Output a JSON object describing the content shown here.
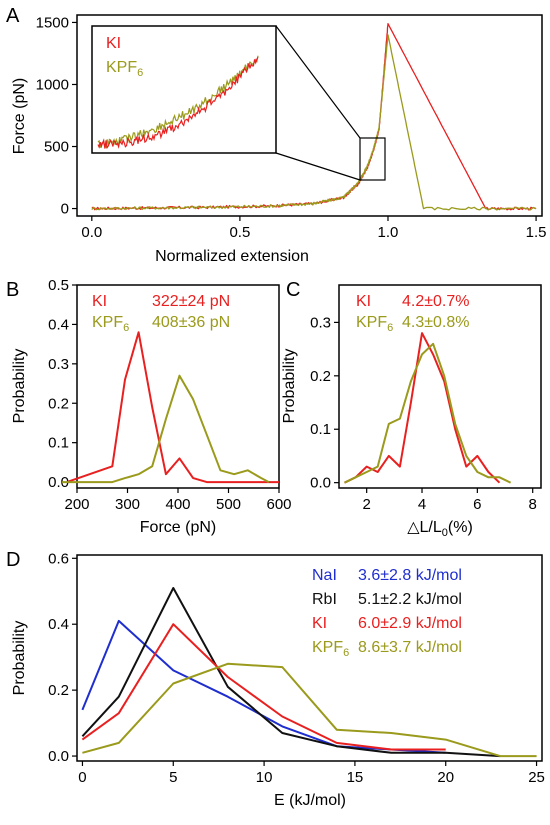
{
  "colors": {
    "ki": "#e82020",
    "kpf6": "#9a9a1c",
    "nai": "#1f2ecf",
    "rbi": "#111111"
  },
  "chart_data": [
    {
      "panel": "A",
      "type": "line",
      "xlabel": "Normalized extension",
      "ylabel": "Force (pN)",
      "xlim": [
        -0.05,
        1.52
      ],
      "ylim": [
        -60,
        1560
      ],
      "xticks": [
        "0.0",
        "0.5",
        "1.0",
        "1.5"
      ],
      "yticks": [
        "0",
        "500",
        "1000",
        "1500"
      ],
      "xtick_values": [
        0,
        0.5,
        1.0,
        1.5
      ],
      "ytick_values": [
        0,
        500,
        1000,
        1500
      ],
      "legend": [
        "KI",
        "KPF6"
      ],
      "series": [
        {
          "name": "KI",
          "x": [
            0,
            0.2,
            0.4,
            0.6,
            0.75,
            0.85,
            0.9,
            0.93,
            0.95,
            0.97,
            1.0,
            1.33,
            1.5
          ],
          "y": [
            0,
            5,
            10,
            20,
            40,
            90,
            200,
            330,
            460,
            640,
            1490,
            0,
            0
          ]
        },
        {
          "name": "KPF6",
          "x": [
            0,
            0.2,
            0.4,
            0.6,
            0.75,
            0.85,
            0.9,
            0.93,
            0.95,
            0.97,
            1.0,
            1.12,
            1.5
          ],
          "y": [
            0,
            5,
            10,
            20,
            40,
            90,
            210,
            340,
            470,
            650,
            1400,
            0,
            0
          ]
        }
      ],
      "inset": "zoom of region x 0.91–0.99, force 200–600 pN"
    },
    {
      "panel": "B",
      "type": "line",
      "xlabel": "Force (pN)",
      "ylabel": "Probability",
      "xlim": [
        200,
        600
      ],
      "ylim": [
        -0.015,
        0.5
      ],
      "xticks": [
        "200",
        "300",
        "400",
        "500",
        "600"
      ],
      "yticks": [
        "0.0",
        "0.1",
        "0.2",
        "0.3",
        "0.4",
        "0.5"
      ],
      "xtick_values": [
        200,
        300,
        400,
        500,
        600
      ],
      "ytick_values": [
        0,
        0.1,
        0.2,
        0.3,
        0.4,
        0.5
      ],
      "legend": [
        {
          "name": "KI",
          "stat": "322±24 pN"
        },
        {
          "name": "KPF6",
          "stat": "408±36 pN"
        }
      ],
      "series": [
        {
          "name": "KI",
          "x": [
            180,
            270,
            295,
            322,
            349,
            376,
            403,
            430,
            457,
            600
          ],
          "y": [
            0,
            0.04,
            0.26,
            0.38,
            0.19,
            0.02,
            0.06,
            0.01,
            0,
            0
          ]
        },
        {
          "name": "KPF6",
          "x": [
            170,
            270,
            295,
            322,
            349,
            376,
            403,
            430,
            457,
            484,
            511,
            538,
            565,
            580
          ],
          "y": [
            0,
            0,
            0.01,
            0.02,
            0.04,
            0.16,
            0.27,
            0.21,
            0.12,
            0.03,
            0.02,
            0.03,
            0.01,
            0
          ]
        }
      ]
    },
    {
      "panel": "C",
      "type": "line",
      "xlabel": "△L/L0(%)",
      "ylabel": "Probability",
      "xlim": [
        1,
        8.3
      ],
      "ylim": [
        -0.01,
        0.37
      ],
      "xticks": [
        "2",
        "4",
        "6",
        "8"
      ],
      "yticks": [
        "0.0",
        "0.1",
        "0.2",
        "0.3"
      ],
      "xtick_values": [
        2,
        4,
        6,
        8
      ],
      "ytick_values": [
        0,
        0.1,
        0.2,
        0.3
      ],
      "legend": [
        {
          "name": "KI",
          "stat": "4.2±0.7%"
        },
        {
          "name": "KPF6",
          "stat": "4.3±0.8%"
        }
      ],
      "series": [
        {
          "name": "KI",
          "x": [
            1.2,
            1.6,
            2.0,
            2.4,
            2.8,
            3.2,
            3.6,
            4.0,
            4.4,
            4.8,
            5.2,
            5.6,
            6.0,
            6.4,
            6.8
          ],
          "y": [
            0,
            0.01,
            0.03,
            0.02,
            0.05,
            0.03,
            0.15,
            0.28,
            0.24,
            0.19,
            0.1,
            0.03,
            0.05,
            0.02,
            0
          ]
        },
        {
          "name": "KPF6",
          "x": [
            1.2,
            1.6,
            2.0,
            2.4,
            2.8,
            3.2,
            3.6,
            4.0,
            4.4,
            4.8,
            5.2,
            5.6,
            6.0,
            6.4,
            6.8,
            7.2
          ],
          "y": [
            0,
            0.01,
            0.02,
            0.03,
            0.11,
            0.12,
            0.19,
            0.24,
            0.26,
            0.2,
            0.11,
            0.05,
            0.02,
            0.01,
            0.01,
            0
          ]
        }
      ]
    },
    {
      "panel": "D",
      "type": "line",
      "xlabel": "E (kJ/mol)",
      "ylabel": "Probability",
      "xlim": [
        -0.3,
        25.3
      ],
      "ylim": [
        -0.015,
        0.61
      ],
      "xticks": [
        "0",
        "5",
        "10",
        "15",
        "20",
        "25"
      ],
      "yticks": [
        "0.0",
        "0.2",
        "0.4",
        "0.6"
      ],
      "xtick_values": [
        0,
        5,
        10,
        15,
        20,
        25
      ],
      "ytick_values": [
        0,
        0.2,
        0.4,
        0.6
      ],
      "legend": [
        {
          "name": "NaI",
          "stat": "3.6±2.8 kJ/mol"
        },
        {
          "name": "RbI",
          "stat": "5.1±2.2 kJ/mol"
        },
        {
          "name": "KI",
          "stat": "6.0±2.9 kJ/mol"
        },
        {
          "name": "KPF6",
          "stat": "8.6±3.7 kJ/mol"
        }
      ],
      "series": [
        {
          "name": "NaI",
          "x": [
            0,
            2,
            5,
            8,
            11,
            14,
            17,
            20
          ],
          "y": [
            0.14,
            0.41,
            0.26,
            0.18,
            0.09,
            0.03,
            0.02,
            0.01
          ]
        },
        {
          "name": "RbI",
          "x": [
            0,
            2,
            5,
            8,
            11,
            14,
            17,
            20,
            23
          ],
          "y": [
            0.06,
            0.18,
            0.51,
            0.21,
            0.07,
            0.03,
            0.01,
            0.01,
            0
          ]
        },
        {
          "name": "KI",
          "x": [
            0,
            2,
            5,
            8,
            11,
            14,
            17,
            20
          ],
          "y": [
            0.05,
            0.13,
            0.4,
            0.24,
            0.12,
            0.04,
            0.02,
            0.02
          ]
        },
        {
          "name": "KPF6",
          "x": [
            0,
            2,
            5,
            8,
            11,
            14,
            17,
            20,
            23,
            25
          ],
          "y": [
            0.01,
            0.04,
            0.22,
            0.28,
            0.27,
            0.08,
            0.07,
            0.05,
            0,
            0
          ]
        }
      ]
    }
  ]
}
